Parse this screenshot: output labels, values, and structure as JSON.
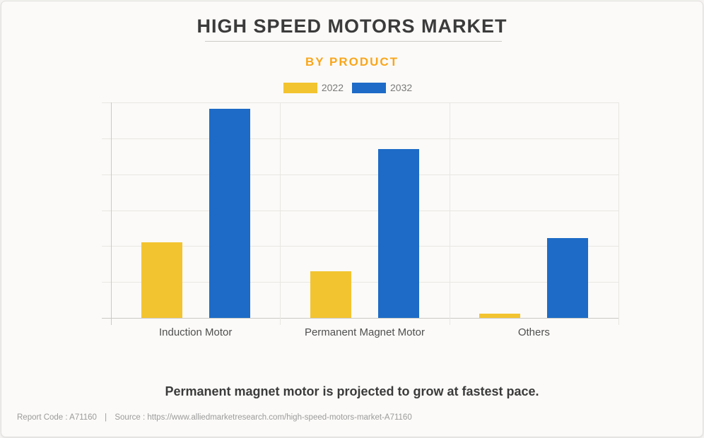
{
  "page": {
    "title": "HIGH SPEED MOTORS MARKET",
    "subtitle": "BY PRODUCT",
    "headline": "Permanent magnet motor is projected to grow at fastest pace.",
    "footnote": {
      "report_code": "Report Code : A71160",
      "separator": "|",
      "source": "Source : https://www.alliedmarketresearch.com/high-speed-motors-market-A71160"
    }
  },
  "colors": {
    "background": "#FBFAF8",
    "title_text": "#3B3B3B",
    "subtitle_orange": "#F9A61B",
    "series_2022": "#F2C430",
    "series_2032": "#1D6BC7",
    "grid_line": "#E9E7E3",
    "axis_line": "#CBC9C5",
    "category_label": "#4F4F4F",
    "footnote_gray": "#9B9B9B"
  },
  "chart_data": {
    "type": "bar",
    "title": "HIGH SPEED MOTORS MARKET",
    "subtitle": "BY PRODUCT",
    "categories": [
      "Induction Motor",
      "Permanent Magnet Motor",
      "Others"
    ],
    "series": [
      {
        "name": "2022",
        "color": "#F2C430",
        "values": [
          2.1,
          1.3,
          0.12
        ]
      },
      {
        "name": "2032",
        "color": "#1D6BC7",
        "values": [
          5.83,
          4.7,
          2.22
        ]
      }
    ],
    "xlabel": "",
    "ylabel": "",
    "ylim": [
      0,
      6
    ],
    "y_gridline_count": 7,
    "y_tick_labels_visible": false,
    "grid": true,
    "legend_position": "top"
  }
}
